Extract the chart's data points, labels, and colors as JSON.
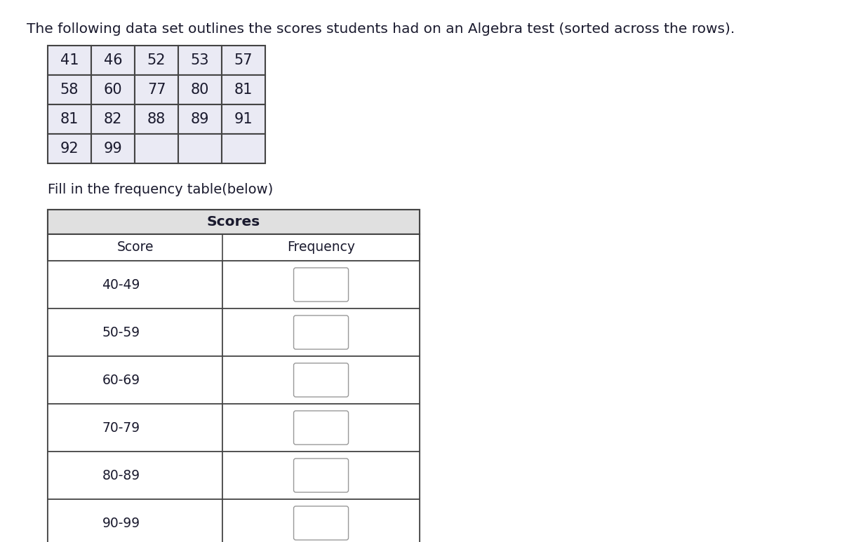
{
  "title_text": "The following data set outlines the scores students had on an Algebra test (sorted across the rows).",
  "scores_grid": [
    [
      41,
      46,
      52,
      53,
      57
    ],
    [
      58,
      60,
      77,
      80,
      81
    ],
    [
      81,
      82,
      88,
      89,
      91
    ],
    [
      92,
      99,
      null,
      null,
      null
    ]
  ],
  "grid_rows": 4,
  "grid_cols": 5,
  "freq_label": "Fill in the frequency table(below)",
  "freq_table_header": "Scores",
  "freq_col1_header": "Score",
  "freq_col2_header": "Frequency",
  "score_ranges": [
    "40-49",
    "50-59",
    "60-69",
    "70-79",
    "80-89",
    "90-99"
  ],
  "bg_color": "#ffffff",
  "grid_cell_bg": "#eaeaf4",
  "grid_border_color": "#444444",
  "freq_table_border_color": "#444444",
  "scores_header_bg": "#e0e0e0",
  "text_color": "#1a1a2e",
  "title_fontsize": 14.5,
  "label_fontsize": 14,
  "table_fontsize": 13.5,
  "grid_number_fontsize": 15
}
